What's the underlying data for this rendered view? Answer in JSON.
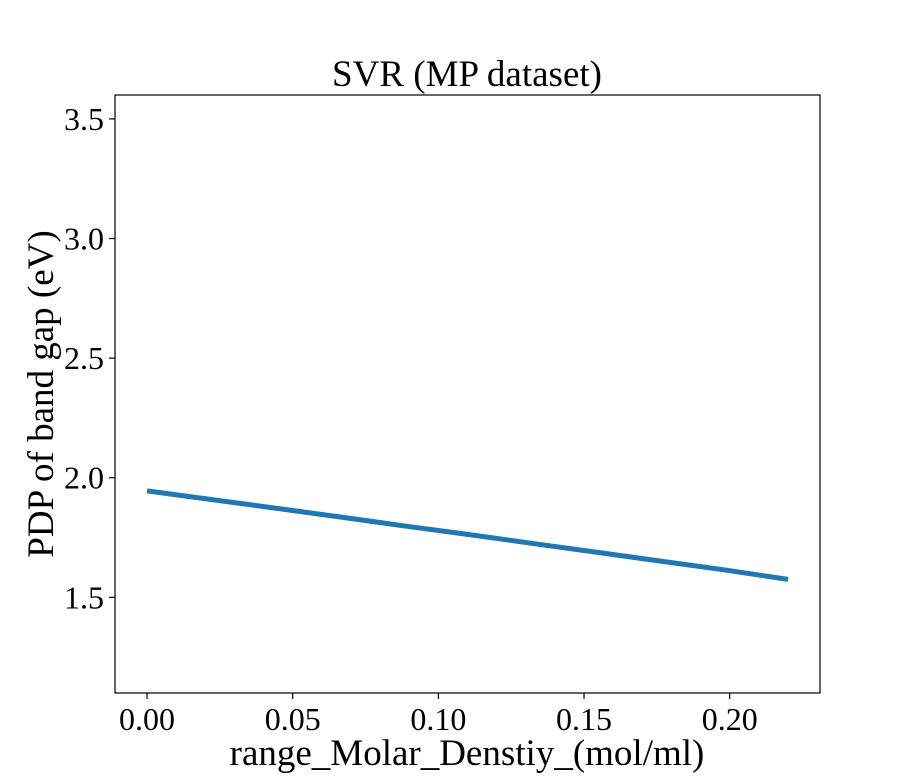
{
  "chart_data": {
    "type": "line",
    "title": "SVR (MP dataset)",
    "xlabel": "range_Molar_Denstiy_(mol/ml)",
    "ylabel": "PDP of band gap (eV)",
    "xlim": [
      -0.011,
      0.231
    ],
    "ylim": [
      1.1,
      3.6
    ],
    "xticks": [
      0.0,
      0.05,
      0.1,
      0.15,
      0.2
    ],
    "xtick_labels": [
      "0.00",
      "0.05",
      "0.10",
      "0.15",
      "0.20"
    ],
    "yticks": [
      1.5,
      2.0,
      2.5,
      3.0,
      3.5
    ],
    "ytick_labels": [
      "1.5",
      "2.0",
      "2.5",
      "3.0",
      "3.5"
    ],
    "grid": false,
    "series": [
      {
        "color": "#1f77b4",
        "x": [
          0.0,
          0.022,
          0.044,
          0.066,
          0.088,
          0.11,
          0.132,
          0.154,
          0.176,
          0.198,
          0.22
        ],
        "y": [
          1.945,
          1.909,
          1.873,
          1.836,
          1.799,
          1.763,
          1.726,
          1.689,
          1.652,
          1.615,
          1.575
        ]
      }
    ]
  }
}
